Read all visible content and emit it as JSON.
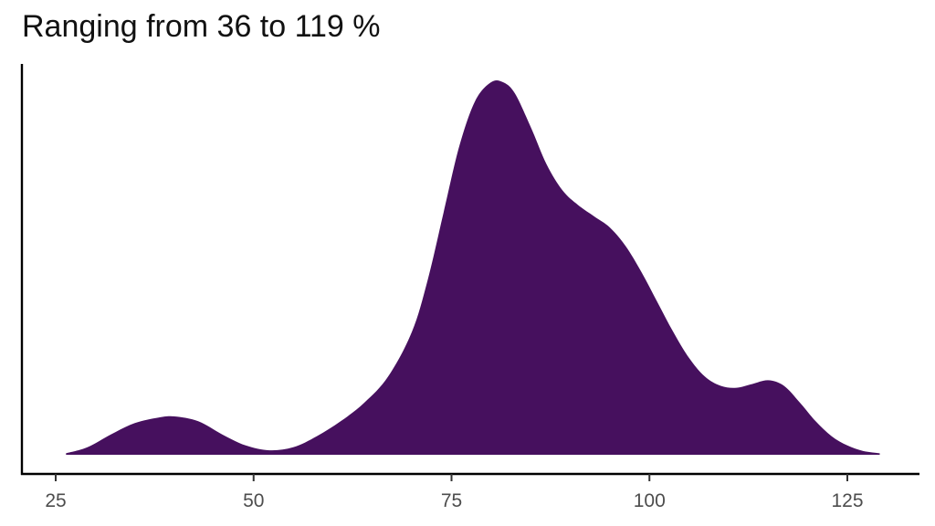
{
  "chart_data": {
    "type": "area",
    "title": "Ranging from 36 to 119 %",
    "xlabel": "",
    "ylabel": "",
    "xlim": [
      21,
      134
    ],
    "ylim": [
      0,
      1.05
    ],
    "x_ticks": [
      25,
      50,
      75,
      100,
      125
    ],
    "x_tick_labels": [
      "25",
      "50",
      "75",
      "100",
      "125"
    ],
    "grid": false,
    "legend": "none",
    "fill_color": "#46105e",
    "series": [
      {
        "x": [
          26.3,
          29,
          32,
          35,
          38,
          40,
          43,
          46,
          49,
          52,
          55,
          58,
          61,
          64,
          67,
          70,
          72,
          74,
          76,
          78,
          80,
          81.5,
          83,
          85,
          87,
          89,
          91,
          93,
          95,
          97,
          99,
          101,
          103,
          105,
          107,
          109,
          111,
          113,
          115,
          117,
          119,
          121,
          123,
          125,
          127,
          129.1
        ],
        "y": [
          0.004,
          0.02,
          0.055,
          0.085,
          0.1,
          0.103,
          0.09,
          0.055,
          0.025,
          0.012,
          0.02,
          0.05,
          0.09,
          0.14,
          0.21,
          0.33,
          0.47,
          0.65,
          0.83,
          0.95,
          1.0,
          1.0,
          0.97,
          0.88,
          0.78,
          0.71,
          0.67,
          0.64,
          0.61,
          0.56,
          0.49,
          0.41,
          0.33,
          0.26,
          0.21,
          0.185,
          0.18,
          0.19,
          0.2,
          0.185,
          0.14,
          0.09,
          0.05,
          0.025,
          0.01,
          0.004
        ]
      }
    ]
  }
}
